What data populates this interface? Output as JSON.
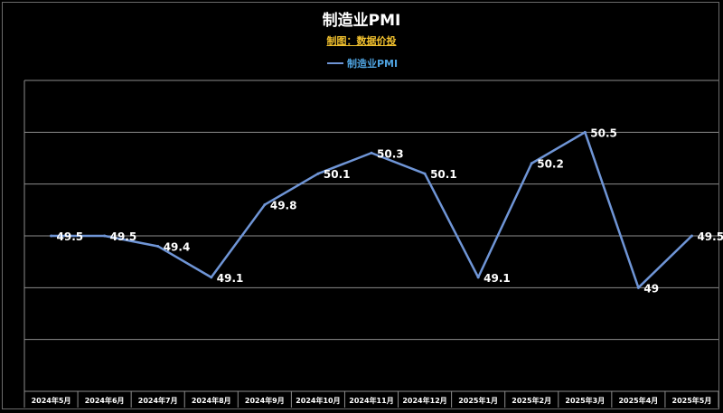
{
  "chart_data": {
    "type": "line",
    "title": "制造业PMI",
    "subtitle": "制图：数据价投",
    "legend": {
      "position": "top-center",
      "entries": [
        "制造业PMI"
      ]
    },
    "categories": [
      "2024年5月",
      "2024年6月",
      "2024年7月",
      "2024年8月",
      "2024年9月",
      "2024年10月",
      "2024年11月",
      "2024年12月",
      "2025年1月",
      "2025年2月",
      "2025年3月",
      "2025年4月",
      "2025年5月"
    ],
    "series": [
      {
        "name": "制造业PMI",
        "values": [
          49.5,
          49.5,
          49.4,
          49.1,
          49.8,
          50.1,
          50.3,
          50.1,
          49.1,
          50.2,
          50.5,
          49.0,
          49.5
        ],
        "color": "#6f95d6"
      }
    ],
    "labels": [
      "49.5",
      "49.5",
      "49.4",
      "49.1",
      "49.8",
      "50.1",
      "50.3",
      "50.1",
      "49.1",
      "50.2",
      "50.5",
      "49",
      "49.5"
    ],
    "ylim": [
      48.0,
      51.0
    ],
    "grid": true,
    "xlabel": "",
    "ylabel": ""
  }
}
